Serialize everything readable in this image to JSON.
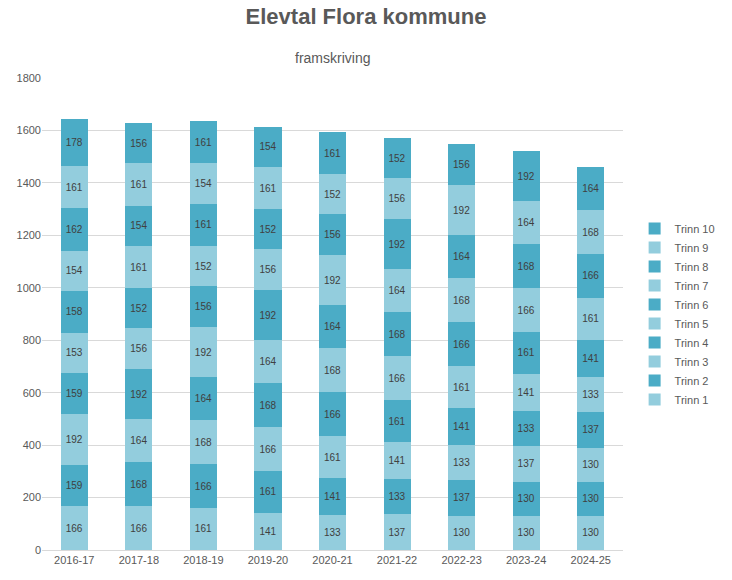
{
  "chart_data": {
    "type": "bar",
    "title": "Elevtal Flora kommune",
    "subtitle": "framskriving",
    "stacked": true,
    "data_labels": true,
    "grid": true,
    "legend": "right",
    "categories": [
      "2016-17",
      "2017-18",
      "2018-19",
      "2019-20",
      "2020-21",
      "2021-22",
      "2022-23",
      "2023-24",
      "2024-25"
    ],
    "ylim": [
      0,
      1800
    ],
    "yticks": [
      0,
      200,
      400,
      600,
      800,
      1000,
      1200,
      1400,
      1600,
      1800
    ],
    "series": [
      {
        "name": "Trinn 1",
        "color": "#93cddd",
        "values": [
          166,
          166,
          161,
          141,
          133,
          137,
          130,
          130,
          130
        ]
      },
      {
        "name": "Trinn 2",
        "color": "#4bacc6",
        "values": [
          159,
          168,
          166,
          161,
          141,
          133,
          137,
          130,
          130
        ]
      },
      {
        "name": "Trinn 3",
        "color": "#93cddd",
        "values": [
          192,
          164,
          168,
          166,
          161,
          141,
          133,
          137,
          130
        ]
      },
      {
        "name": "Trinn 4",
        "color": "#4bacc6",
        "values": [
          159,
          192,
          164,
          168,
          166,
          161,
          141,
          133,
          137
        ]
      },
      {
        "name": "Trinn 5",
        "color": "#93cddd",
        "values": [
          153,
          156,
          192,
          164,
          168,
          166,
          161,
          141,
          133
        ]
      },
      {
        "name": "Trinn 6",
        "color": "#4bacc6",
        "values": [
          158,
          152,
          156,
          192,
          164,
          168,
          166,
          161,
          141
        ]
      },
      {
        "name": "Trinn 7",
        "color": "#93cddd",
        "values": [
          154,
          161,
          152,
          156,
          192,
          164,
          168,
          166,
          161
        ]
      },
      {
        "name": "Trinn 8",
        "color": "#4bacc6",
        "values": [
          162,
          154,
          161,
          152,
          156,
          192,
          164,
          168,
          166
        ]
      },
      {
        "name": "Trinn 9",
        "color": "#93cddd",
        "values": [
          161,
          161,
          154,
          161,
          152,
          156,
          192,
          164,
          168
        ]
      },
      {
        "name": "Trinn 10",
        "color": "#4bacc6",
        "values": [
          178,
          156,
          161,
          154,
          161,
          152,
          156,
          192,
          164
        ]
      }
    ]
  }
}
